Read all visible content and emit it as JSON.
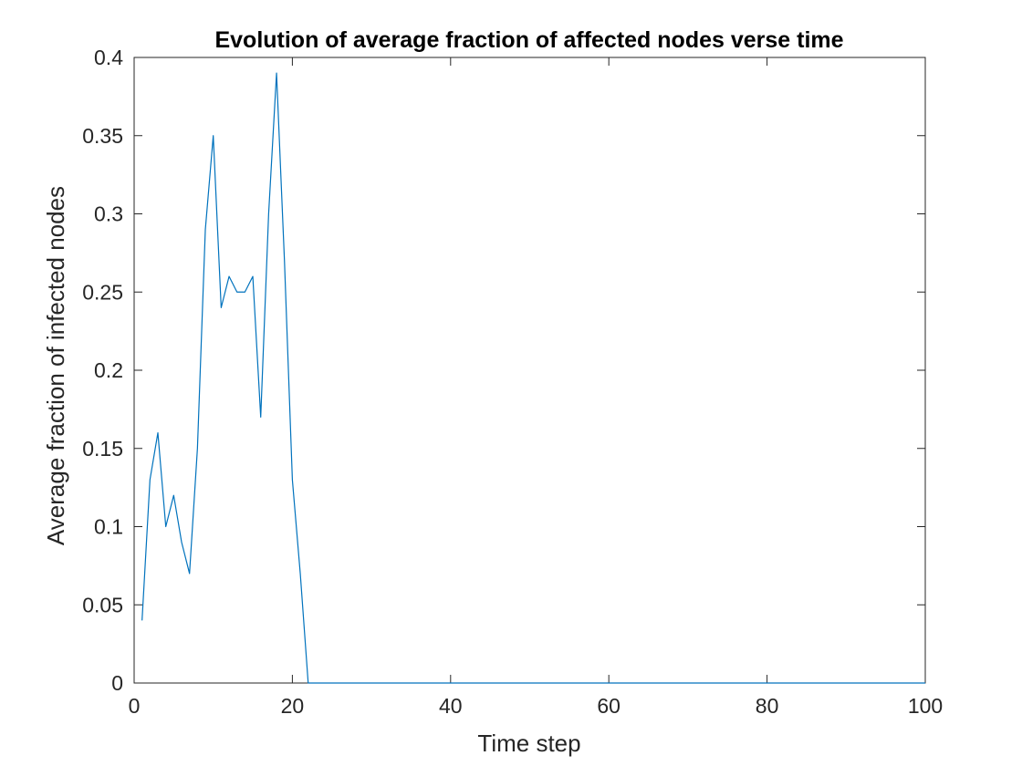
{
  "chart_data": {
    "type": "line",
    "title": "Evolution of average fraction of affected nodes verse time",
    "xlabel": "Time step",
    "ylabel": "Average fraction of infected nodes",
    "xlim": [
      0,
      100
    ],
    "ylim": [
      0,
      0.4
    ],
    "xticks": [
      0,
      20,
      40,
      60,
      80,
      100
    ],
    "xtick_labels": [
      "0",
      "20",
      "40",
      "60",
      "80",
      "100"
    ],
    "yticks": [
      0,
      0.05,
      0.1,
      0.15,
      0.2,
      0.25,
      0.3,
      0.35,
      0.4
    ],
    "ytick_labels": [
      "0",
      "0.05",
      "0.1",
      "0.15",
      "0.2",
      "0.25",
      "0.3",
      "0.35",
      "0.4"
    ],
    "grid": false,
    "legend": "none",
    "series": [
      {
        "color": "#0072BD",
        "x": [
          1,
          2,
          3,
          4,
          5,
          6,
          7,
          8,
          9,
          10,
          11,
          12,
          13,
          14,
          15,
          16,
          17,
          18,
          19,
          20,
          21,
          22,
          100
        ],
        "y": [
          0.04,
          0.13,
          0.16,
          0.1,
          0.12,
          0.09,
          0.07,
          0.15,
          0.29,
          0.35,
          0.24,
          0.26,
          0.25,
          0.25,
          0.26,
          0.17,
          0.3,
          0.39,
          0.27,
          0.13,
          0.07,
          0,
          0
        ]
      }
    ]
  }
}
